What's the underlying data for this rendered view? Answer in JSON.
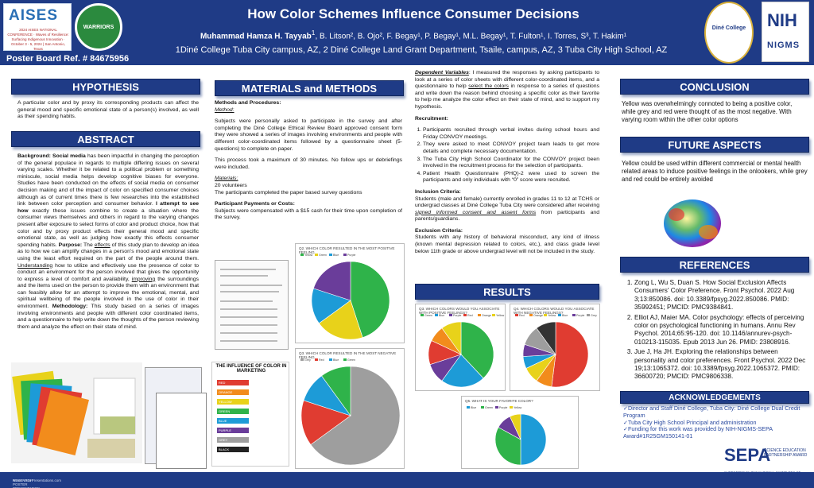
{
  "header": {
    "title": "How Color Schemes Influence Consumer Decisions",
    "lead_author": "Muhammad Hamza H. Tayyab",
    "lead_sup": "1",
    "coauthors": ", B. Litson², B. Ojo², F. Begay¹, P. Begay¹, M.L. Begay¹,  T. Fulton¹, I. Torres, S³, T. Hakim¹",
    "affiliations": "1Diné College Tuba City campus, AZ, 2 Diné College Land Grant Department, Tsaile, campus, AZ, 3 Tuba City High School, AZ",
    "board_ref": "Poster Board Ref. # 84675956",
    "logos": {
      "aises": "AISES",
      "aises_sub": "2024 AISES NATIONAL CONFERENCE · Waves of Resilience: Surfacing Indigenous Innovation · October 3 - 5, 2024 | San Antonio, Texas",
      "warriors": "WARRIORS",
      "dine": "Diné College",
      "nih": "NIH",
      "nigms": "NIGMS"
    }
  },
  "hypothesis": {
    "heading": "HYPOTHESIS",
    "text": "A particular color and by proxy its corresponding products can affect the general mood and specific emotional state of a person(s) involved, as well as their spending habits."
  },
  "abstract": {
    "heading": "ABSTRACT",
    "bg_label": "Background: Social media",
    "bg_text": " has been impactful in changing the perception of the general populace in regards to multiple differing issues on several varying scales. Whether it be related to a political problem or something miniscule, social media helps develop cognitive biases for everyone. Studies have been conducted on the effects of social media on consumer decision making and of the impact of color on specified consumer choices although as of current times there is few researches into the established link between color perception and consumer  behavior. ",
    "attempt_label": "I attempt to see how",
    "attempt_text": " exactly these issues combine to create a situation where the consumer views themselves and others in regard to the varying changes present after exposure to select forms of color and product choice, how that color and by proxy product effects their general mood and specific emotional state, as well as judging how exactly this effects consumer spending habits. ",
    "purpose_label": "Purpose:",
    "purpose_text_1": " The ",
    "purpose_u1": "effects",
    "purpose_text_2": " of this study plan to develop an idea as to how we can amplify changes in a person’s mood and emotional state using the least effort required on the part of the people around them. ",
    "purpose_u2": "Understanding",
    "purpose_text_3": " how to utilize and effectively use the presence of color to conduct an environment for  the person involved that gives the opportunity to express a level of comfort and availability, ",
    "purpose_u3": "improving",
    "purpose_text_4": " the surroundings and the items used on the person to provide them with an environment that can feasibly allow for an attempt to improve the emotional, mental, and spiritual wellbeing of the people involved in the use of color in their environment. ",
    "method_label": "Methodology:",
    "method_text": " This study based on a series of images involving environments and people with different color coordinated items, and a questionnaire to help write down the thoughts of the person reviewing them and analyze the effect on their state of mind."
  },
  "materials": {
    "heading": "MATERIALS and METHODS",
    "proc_label": "Methods and Procedures:",
    "method_label": "Method:",
    "method_text": "Subjects were personally asked to participate in the survey and after completing the Diné College Ethical Review Board approved consent form they were showed a series of images  involving environments and people with different color-coordinated items followed by a questionnaire sheet (5-questions) to complete on paper.",
    "duration_text": "This process took a maximum of 30 minutes. No follow ups or debriefings were included.",
    "materials_label": "Materials:",
    "volunteers": "20 volunteers",
    "completed": "The participants completed the paper based survey questions",
    "payments_label": "Participant Payments or Costs:",
    "payments_text": "Subjects were compensated with a $15 cash for their time upon completion of the survey."
  },
  "middle": {
    "dependent_label": "Dependent Variables",
    "dependent_text_1": ": I measured the responses by asking participants to look at a series of color sheets with different color-coordinated items, and a questionnaire to help ",
    "dependent_u": "select the colors",
    "dependent_text_2": " in response to a series of questions and write down the reason behind choosing a specific color as their favorite to help me analyze the color effect on their state of mind, and to support my hypothesis.",
    "recruitment_label": "Recruitment:",
    "recruitment": [
      "Participants recruited through verbal invites during school hours and Friday CONVOY meetings.",
      "They were asked to meet CONVOY project team leads to get more details and complete necessary documentation.",
      "The Tuba City High School Coordinator for the CONVOY project been involved in the recruitment process for the selection of participants.",
      "Patient Health Questionnaire (PHQ)-2 were used to screen the participants and only individuals with “0” score were recruited."
    ],
    "inclusion_label": "Inclusion Criteria:",
    "inclusion_text_1": "Students (male and female) currently enrolled in grades 11 to 12 at TCHS or undergrad classes at Diné College Tuba City were considered after receiving ",
    "inclusion_u": "signed informed consent and assent forms",
    "inclusion_text_2": " from participants and parents/guardians.",
    "exclusion_label": "Exclusion Criteria:",
    "exclusion_text": "Students with any history of behavioral misconduct, any kind of illness (known mental depression related to colors, etc.), and class grade level below 11th grade or above undergrad level will not be included in the study."
  },
  "results": {
    "heading": "RESULTS"
  },
  "conclusion": {
    "heading": "CONCLUSION",
    "text": "Yellow was overwhelmingly connoted to being a positive color, while grey  and red were thought of as the most negative. With varying room within the other color options"
  },
  "future": {
    "heading": "FUTURE ASPECTS",
    "text": "Yellow could be used within different commercial or mental health related areas to induce positive feelings in the onlookers, while grey and red could be entirely avoided"
  },
  "references": {
    "heading": "REFERENCES",
    "items": [
      "Zong L, Wu S, Duan S. How Social Exclusion Affects Consumers' Color Preference. Front Psychol. 2022 Aug 3;13:850086. doi: 10.3389/fpsyg.2022.850086. PMID: 35992451; PMCID: PMC9384841.",
      "Elliot AJ, Maier MA. Color psychology: effects of perceiving color on psychological functioning in humans. Annu Rev Psychol. 2014;65:95-120. doi: 10.1146/annurev-psych-010213-115035. Epub 2013 Jun 26. PMID: 23808916.",
      "Jue J, Ha JH. Exploring the relationships between personality and color preferences. Front Psychol. 2022 Dec 19;13:1065372. doi: 10.3389/fpsyg.2022.1065372. PMID: 36600720; PMCID: PMC9806338."
    ]
  },
  "acknowledgements": {
    "heading": "ACKNOWLEDGEMENTS",
    "items": [
      "✓Director and Staff Diné College, Tuba City: Diné College Dual Credit Program",
      "✓Tuba City High School Principal and administration",
      "✓Funding for this work was provided by NIH-NIGMS-SEPA Award#1R25GM150141-01"
    ]
  },
  "sepa": {
    "logo": "SEPA",
    "tagline": "SCIENCE EDUCATION PARTNERSHIP AWARD",
    "support": "SUPPORTED BY THE NATIONAL INSTITUTES OF HEALTH"
  },
  "infographic": {
    "title": "THE INFLUENCE OF COLOR IN MARKETING",
    "rows": [
      "RED",
      "ORANGE",
      "YELLOW",
      "GREEN",
      "BLUE",
      "PURPLE",
      "GREY",
      "BLACK"
    ]
  },
  "chart_data": [
    {
      "type": "pie",
      "title": "Q2. WHICH COLOR RESULTED IN THE MOST POSITIVE FEELING",
      "slices": [
        {
          "label": "Yellow",
          "value": 45,
          "color": "#2fb34a"
        },
        {
          "label": "Green",
          "value": 20,
          "color": "#e8d21a"
        },
        {
          "label": "Blue",
          "value": 15,
          "color": "#1d9bd7"
        },
        {
          "label": "Purple",
          "value": 20,
          "color": "#6a3d9a"
        }
      ]
    },
    {
      "type": "pie",
      "title": "Q3. WHICH COLORS WOULD YOU ASSOCIATE WITH POSITIVE FEELINGS?",
      "slices": [
        {
          "label": "Green",
          "value": 38,
          "color": "#2fb34a"
        },
        {
          "label": "Blue",
          "value": 22,
          "color": "#1d9bd7"
        },
        {
          "label": "Purple",
          "value": 10,
          "color": "#6a3d9a"
        },
        {
          "label": "Red",
          "value": 12,
          "color": "#e03c31"
        },
        {
          "label": "Orange",
          "value": 8,
          "color": "#f28c1c"
        },
        {
          "label": "Yellow",
          "value": 10,
          "color": "#e8d21a"
        }
      ]
    },
    {
      "type": "pie",
      "title": "Q4. WHICH COLORS WOULD YOU ASSOCIATE WITH NEGATIVE FEELINGS?",
      "slices": [
        {
          "label": "Red",
          "value": 52,
          "color": "#e03c31"
        },
        {
          "label": "Orange",
          "value": 8,
          "color": "#f28c1c"
        },
        {
          "label": "Yellow",
          "value": 8,
          "color": "#e8d21a"
        },
        {
          "label": "Blue",
          "value": 6,
          "color": "#1d9bd7"
        },
        {
          "label": "Purple",
          "value": 6,
          "color": "#6a3d9a"
        },
        {
          "label": "Grey",
          "value": 10,
          "color": "#9e9e9e"
        },
        {
          "label": "Black",
          "value": 10,
          "color": "#333333"
        }
      ]
    },
    {
      "type": "pie",
      "title": "Q3. WHICH COLOR RESULTED IN THE MOST NEGATIVE FEELING",
      "slices": [
        {
          "label": "Grey",
          "value": 65,
          "color": "#9e9e9e"
        },
        {
          "label": "Red",
          "value": 15,
          "color": "#e03c31"
        },
        {
          "label": "Blue",
          "value": 10,
          "color": "#1d9bd7"
        },
        {
          "label": "Green",
          "value": 10,
          "color": "#2fb34a"
        }
      ]
    },
    {
      "type": "pie",
      "title": "Q5. WHAT IS YOUR FAVORITE COLOR?",
      "slices": [
        {
          "label": "Blue",
          "value": 50,
          "color": "#1d9bd7"
        },
        {
          "label": "Green",
          "value": 33,
          "color": "#2fb34a"
        },
        {
          "label": "Purple",
          "value": 10,
          "color": "#6a3d9a"
        },
        {
          "label": "Yellow",
          "value": 7,
          "color": "#e8d21a"
        }
      ]
    }
  ],
  "footer": {
    "line1": "RESEARCH POSTER PRESENTATION DESIGN © 2019",
    "line2": "www.PosterPresentations.com"
  }
}
